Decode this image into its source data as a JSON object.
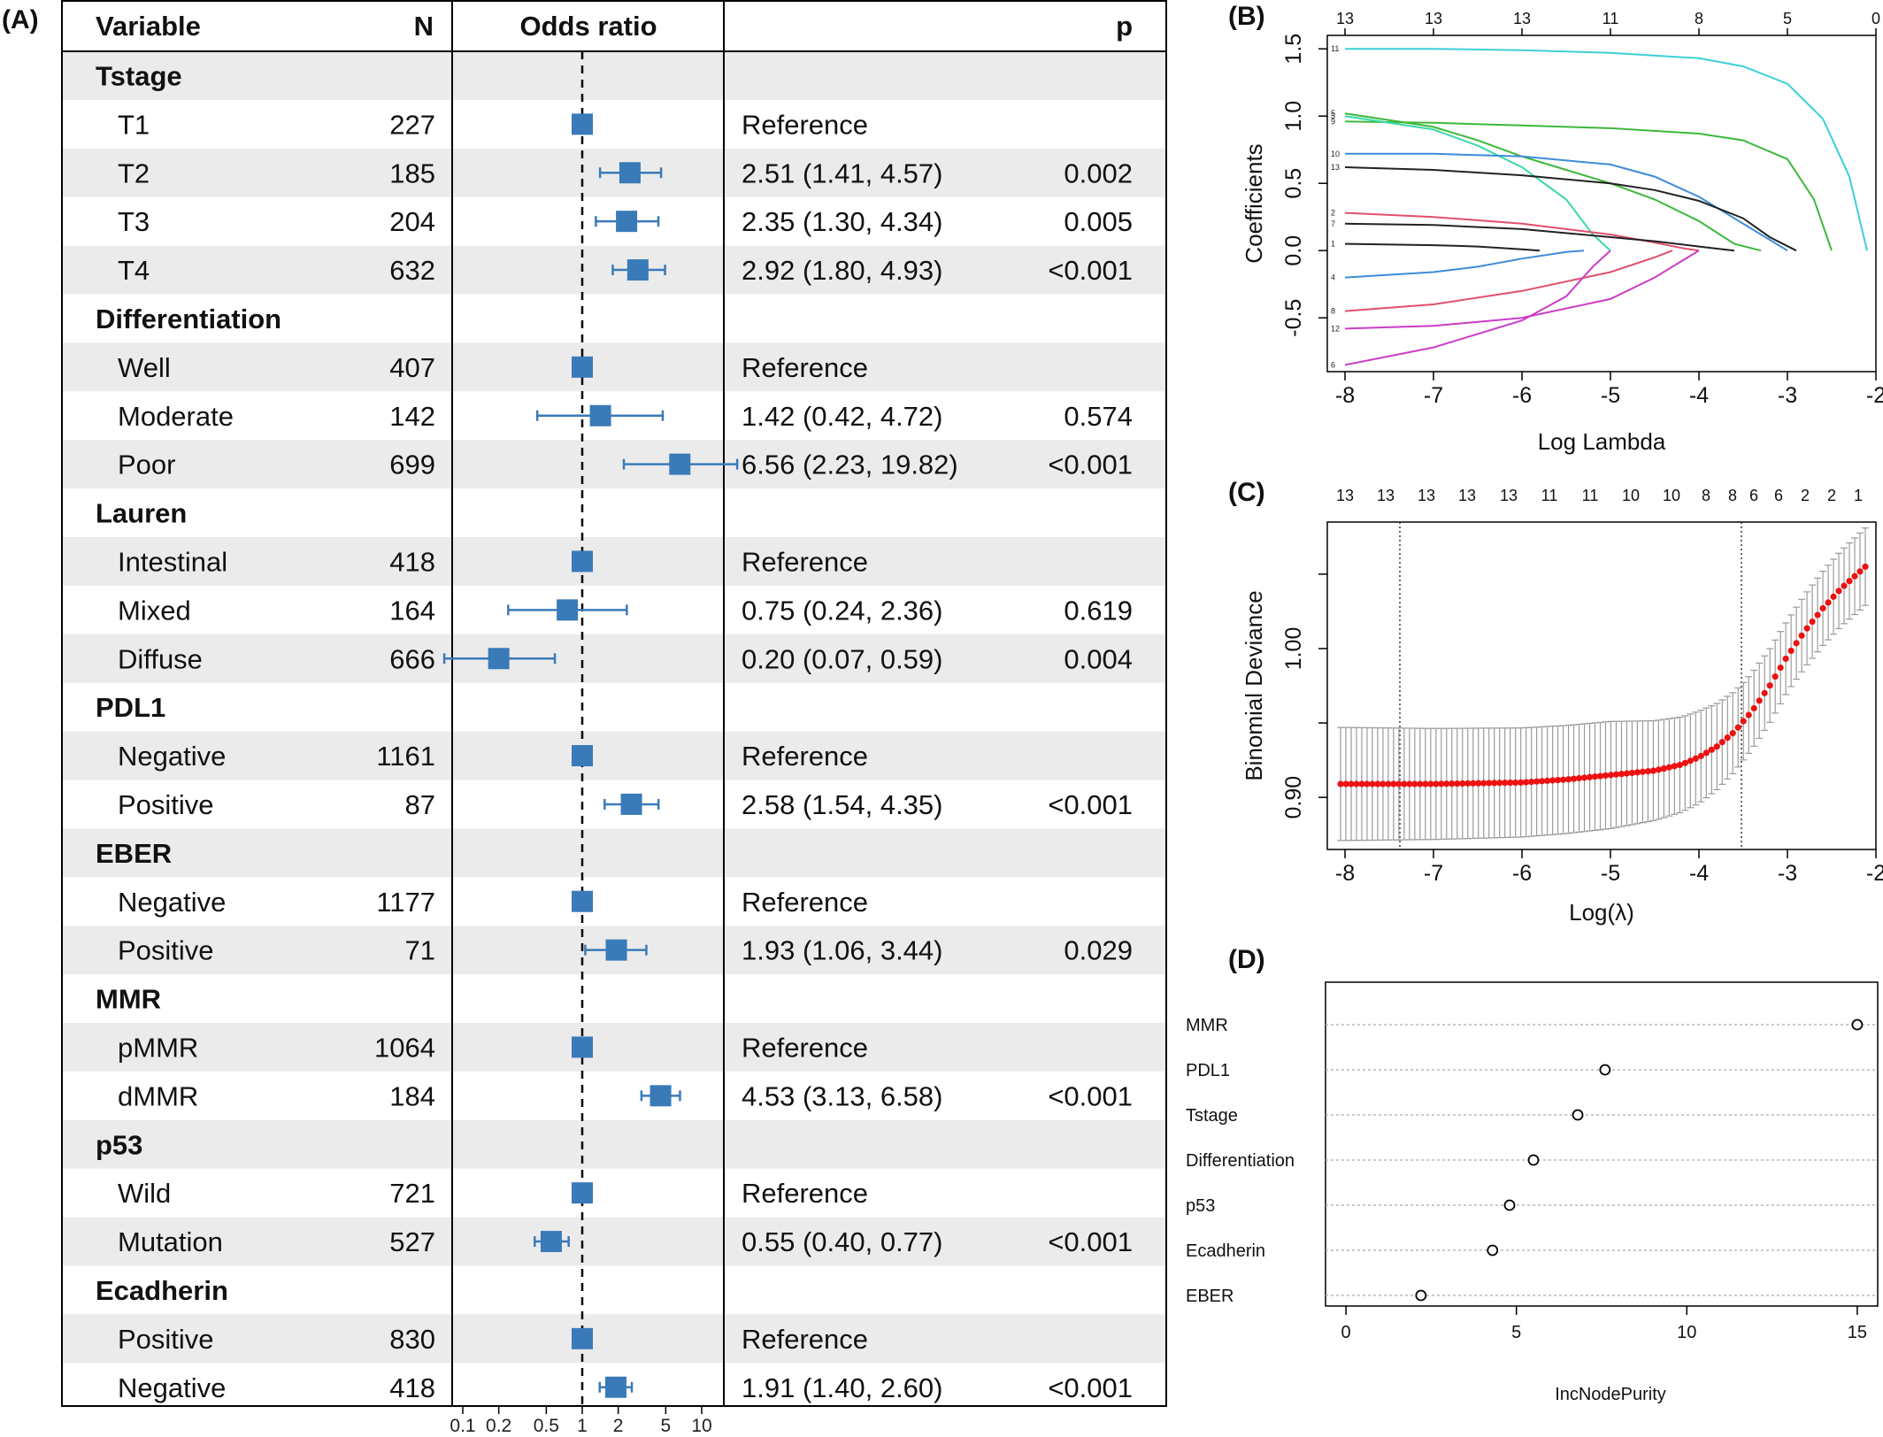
{
  "panel_labels": {
    "a": "(A)",
    "b": "(B)",
    "c": "(C)",
    "d": "(D)"
  },
  "chart_data": [
    {
      "type": "forest",
      "panel": "(A)",
      "headers": {
        "variable": "Variable",
        "n": "N",
        "odds_ratio": "Odds ratio",
        "p": "p"
      },
      "x_scale": "log",
      "reference_line": 1,
      "x_ticks": [
        0.1,
        0.2,
        0.5,
        1,
        2,
        5,
        10
      ],
      "x_tick_labels": [
        "0.1",
        "0.2",
        "0.5",
        "1",
        "2",
        "5",
        "10"
      ],
      "rows": [
        {
          "kind": "group",
          "label": "Tstage"
        },
        {
          "kind": "item",
          "label": "T1",
          "n": "227",
          "est": 1,
          "low": null,
          "high": null,
          "ci_text": "Reference",
          "p": ""
        },
        {
          "kind": "item",
          "label": "T2",
          "n": "185",
          "est": 2.51,
          "low": 1.41,
          "high": 4.57,
          "ci_text": "2.51 (1.41, 4.57)",
          "p": "0.002"
        },
        {
          "kind": "item",
          "label": "T3",
          "n": "204",
          "est": 2.35,
          "low": 1.3,
          "high": 4.34,
          "ci_text": "2.35 (1.30, 4.34)",
          "p": "0.005"
        },
        {
          "kind": "item",
          "label": "T4",
          "n": "632",
          "est": 2.92,
          "low": 1.8,
          "high": 4.93,
          "ci_text": "2.92 (1.80, 4.93)",
          "p": "<0.001"
        },
        {
          "kind": "group",
          "label": "Differentiation"
        },
        {
          "kind": "item",
          "label": "Well",
          "n": "407",
          "est": 1,
          "low": null,
          "high": null,
          "ci_text": "Reference",
          "p": ""
        },
        {
          "kind": "item",
          "label": "Moderate",
          "n": "142",
          "est": 1.42,
          "low": 0.42,
          "high": 4.72,
          "ci_text": "1.42 (0.42, 4.72)",
          "p": "0.574"
        },
        {
          "kind": "item",
          "label": "Poor",
          "n": "699",
          "est": 6.56,
          "low": 2.23,
          "high": 19.82,
          "ci_text": "6.56 (2.23, 19.82)",
          "p": "<0.001"
        },
        {
          "kind": "group",
          "label": "Lauren"
        },
        {
          "kind": "item",
          "label": "Intestinal",
          "n": "418",
          "est": 1,
          "low": null,
          "high": null,
          "ci_text": "Reference",
          "p": ""
        },
        {
          "kind": "item",
          "label": "Mixed",
          "n": "164",
          "est": 0.75,
          "low": 0.24,
          "high": 2.36,
          "ci_text": "0.75 (0.24, 2.36)",
          "p": "0.619"
        },
        {
          "kind": "item",
          "label": "Diffuse",
          "n": "666",
          "est": 0.2,
          "low": 0.07,
          "high": 0.59,
          "ci_text": "0.20 (0.07, 0.59)",
          "p": "0.004"
        },
        {
          "kind": "group",
          "label": "PDL1"
        },
        {
          "kind": "item",
          "label": "Negative",
          "n": "1161",
          "est": 1,
          "low": null,
          "high": null,
          "ci_text": "Reference",
          "p": ""
        },
        {
          "kind": "item",
          "label": "Positive",
          "n": "87",
          "est": 2.58,
          "low": 1.54,
          "high": 4.35,
          "ci_text": "2.58 (1.54, 4.35)",
          "p": "<0.001"
        },
        {
          "kind": "group",
          "label": "EBER"
        },
        {
          "kind": "item",
          "label": "Negative",
          "n": "1177",
          "est": 1,
          "low": null,
          "high": null,
          "ci_text": "Reference",
          "p": ""
        },
        {
          "kind": "item",
          "label": "Positive",
          "n": "71",
          "est": 1.93,
          "low": 1.06,
          "high": 3.44,
          "ci_text": "1.93 (1.06, 3.44)",
          "p": "0.029"
        },
        {
          "kind": "group",
          "label": "MMR"
        },
        {
          "kind": "item",
          "label": "pMMR",
          "n": "1064",
          "est": 1,
          "low": null,
          "high": null,
          "ci_text": "Reference",
          "p": ""
        },
        {
          "kind": "item",
          "label": "dMMR",
          "n": "184",
          "est": 4.53,
          "low": 3.13,
          "high": 6.58,
          "ci_text": "4.53 (3.13, 6.58)",
          "p": "<0.001"
        },
        {
          "kind": "group",
          "label": "p53"
        },
        {
          "kind": "item",
          "label": "Wild",
          "n": "721",
          "est": 1,
          "low": null,
          "high": null,
          "ci_text": "Reference",
          "p": ""
        },
        {
          "kind": "item",
          "label": "Mutation",
          "n": "527",
          "est": 0.55,
          "low": 0.4,
          "high": 0.77,
          "ci_text": "0.55 (0.40, 0.77)",
          "p": "<0.001"
        },
        {
          "kind": "group",
          "label": "Ecadherin"
        },
        {
          "kind": "item",
          "label": "Positive",
          "n": "830",
          "est": 1,
          "low": null,
          "high": null,
          "ci_text": "Reference",
          "p": ""
        },
        {
          "kind": "item",
          "label": "Negative",
          "n": "418",
          "est": 1.91,
          "low": 1.4,
          "high": 2.6,
          "ci_text": "1.91 (1.40, 2.60)",
          "p": "<0.001"
        }
      ],
      "colors": {
        "marker": "#3a7ab8",
        "stripe": "#ebebeb"
      }
    },
    {
      "type": "line",
      "panel": "(B)",
      "xlabel": "Log Lambda",
      "ylabel": "Coefficients",
      "xlim": [
        -8.2,
        -2.0
      ],
      "ylim": [
        -0.9,
        1.6
      ],
      "x_ticks": [
        -8,
        -7,
        -6,
        -5,
        -4,
        -3,
        -2
      ],
      "y_ticks": [
        -0.5,
        0.0,
        0.5,
        1.0,
        1.5
      ],
      "y_tick_labels": [
        "-0.5",
        "0.0",
        "0.5",
        "1.0",
        "1.5"
      ],
      "top_axis_x": [
        -8,
        -7,
        -6,
        -5,
        -4,
        -3,
        -2
      ],
      "top_axis_labels": [
        "13",
        "13",
        "13",
        "11",
        "8",
        "5",
        "0"
      ],
      "series": [
        {
          "name": "11",
          "color": "#3ccfd8",
          "x": [
            -8,
            -7,
            -6,
            -5,
            -4,
            -3.5,
            -3,
            -2.6,
            -2.3,
            -2.1
          ],
          "y": [
            1.5,
            1.5,
            1.49,
            1.47,
            1.43,
            1.37,
            1.24,
            0.98,
            0.55,
            0
          ]
        },
        {
          "name": "5",
          "color": "#3cb83c",
          "x": [
            -8,
            -7,
            -6.5,
            -6,
            -5.5,
            -5,
            -4.5,
            -4,
            -3.6,
            -3.3
          ],
          "y": [
            1.02,
            0.92,
            0.82,
            0.7,
            0.6,
            0.5,
            0.38,
            0.22,
            0.05,
            0
          ]
        },
        {
          "name": "9",
          "color": "#3cb83c",
          "x": [
            -8,
            -7,
            -6,
            -5,
            -4,
            -3.5,
            -3,
            -2.7,
            -2.5
          ],
          "y": [
            0.96,
            0.95,
            0.93,
            0.91,
            0.87,
            0.82,
            0.68,
            0.38,
            0
          ]
        },
        {
          "name": "3",
          "color": "#3cd8a8",
          "x": [
            -8,
            -7,
            -6.5,
            -6,
            -5.5,
            -5.2,
            -5
          ],
          "y": [
            1.0,
            0.9,
            0.78,
            0.62,
            0.38,
            0.12,
            0
          ]
        },
        {
          "name": "10",
          "color": "#3c8cd8",
          "x": [
            -8,
            -7,
            -6,
            -5,
            -4.5,
            -4,
            -3.5,
            -3
          ],
          "y": [
            0.72,
            0.72,
            0.7,
            0.64,
            0.55,
            0.4,
            0.2,
            0
          ]
        },
        {
          "name": "13",
          "color": "#222222",
          "x": [
            -8,
            -7,
            -6,
            -5,
            -4.5,
            -4,
            -3.5,
            -3.2,
            -2.9
          ],
          "y": [
            0.62,
            0.6,
            0.56,
            0.5,
            0.45,
            0.37,
            0.24,
            0.1,
            0
          ]
        },
        {
          "name": "2",
          "color": "#e0506a",
          "x": [
            -8,
            -7,
            -6,
            -5,
            -4.5,
            -4.2,
            -4
          ],
          "y": [
            0.28,
            0.25,
            0.2,
            0.12,
            0.06,
            0.02,
            0
          ]
        },
        {
          "name": "7",
          "color": "#222222",
          "x": [
            -8,
            -7,
            -6,
            -5,
            -4.5,
            -4,
            -3.6
          ],
          "y": [
            0.2,
            0.19,
            0.16,
            0.1,
            0.07,
            0.03,
            0
          ]
        },
        {
          "name": "1",
          "color": "#222222",
          "x": [
            -8,
            -7,
            -6.5,
            -6,
            -5.8
          ],
          "y": [
            0.05,
            0.04,
            0.03,
            0.01,
            0
          ]
        },
        {
          "name": "4",
          "color": "#3c8cd8",
          "x": [
            -8,
            -7,
            -6.5,
            -6,
            -5.5,
            -5.3
          ],
          "y": [
            -0.2,
            -0.16,
            -0.12,
            -0.06,
            -0.01,
            0
          ]
        },
        {
          "name": "8",
          "color": "#e0506a",
          "x": [
            -8,
            -7,
            -6,
            -5,
            -4.5,
            -4.3
          ],
          "y": [
            -0.45,
            -0.4,
            -0.3,
            -0.16,
            -0.05,
            0
          ]
        },
        {
          "name": "12",
          "color": "#cc3cc8",
          "x": [
            -8,
            -7,
            -6,
            -5,
            -4.5,
            -4
          ],
          "y": [
            -0.58,
            -0.56,
            -0.5,
            -0.36,
            -0.2,
            0
          ]
        },
        {
          "name": "6",
          "color": "#cc3cc8",
          "x": [
            -8,
            -7,
            -6,
            -5.5,
            -5.2,
            -5
          ],
          "y": [
            -0.85,
            -0.72,
            -0.52,
            -0.34,
            -0.12,
            0
          ]
        }
      ]
    },
    {
      "type": "scatter",
      "panel": "(C)",
      "xlabel": "Log(λ)",
      "ylabel": "Binomial Deviance",
      "xlim": [
        -8.2,
        -2.0
      ],
      "ylim": [
        0.865,
        1.085
      ],
      "x_ticks": [
        -8,
        -7,
        -6,
        -5,
        -4,
        -3,
        -2
      ],
      "y_ticks": [
        0.9,
        0.95,
        1.0,
        1.05
      ],
      "y_tick_labels": [
        "0.90",
        "",
        "1.00",
        ""
      ],
      "top_axis_x": [
        -8,
        -7.54,
        -7.08,
        -6.62,
        -6.15,
        -5.69,
        -5.23,
        -4.77,
        -4.31,
        -3.92,
        -3.62,
        -3.38,
        -3.1,
        -2.8,
        -2.5,
        -2.2
      ],
      "top_axis_labels": [
        "13",
        "13",
        "13",
        "13",
        "13",
        "11",
        "11",
        "10",
        "10",
        "8",
        "8",
        "6",
        "6",
        "2",
        "2",
        "1"
      ],
      "vlines": [
        -7.38,
        -3.52
      ],
      "x_start": -8.05,
      "x_end": -2.12,
      "points_count": 100,
      "curve": [
        [
          -8.05,
          0.909
        ],
        [
          -7,
          0.909
        ],
        [
          -6,
          0.91
        ],
        [
          -5.5,
          0.912
        ],
        [
          -5,
          0.915
        ],
        [
          -4.5,
          0.918
        ],
        [
          -4.2,
          0.922
        ],
        [
          -4.0,
          0.927
        ],
        [
          -3.8,
          0.934
        ],
        [
          -3.6,
          0.944
        ],
        [
          -3.4,
          0.958
        ],
        [
          -3.2,
          0.975
        ],
        [
          -3.0,
          0.995
        ],
        [
          -2.8,
          1.012
        ],
        [
          -2.6,
          1.027
        ],
        [
          -2.4,
          1.04
        ],
        [
          -2.12,
          1.055
        ]
      ],
      "se_curve": [
        [
          -8.05,
          0.038
        ],
        [
          -5,
          0.036
        ],
        [
          -4,
          0.031
        ],
        [
          -3.5,
          0.026
        ],
        [
          -3,
          0.024
        ],
        [
          -2.12,
          0.026
        ]
      ],
      "colors": {
        "points": "#ee1111",
        "errorbar": "#9a9a9a"
      }
    },
    {
      "type": "dotplot",
      "panel": "(D)",
      "xlabel": "IncNodePurity",
      "xlim": [
        -0.6,
        15.6
      ],
      "x_ticks": [
        0,
        5,
        10,
        15
      ],
      "categories": [
        "MMR",
        "PDL1",
        "Tstage",
        "Differentiation",
        "p53",
        "Ecadherin",
        "EBER"
      ],
      "values": [
        15.0,
        7.6,
        6.8,
        5.5,
        4.8,
        4.3,
        2.2
      ]
    }
  ]
}
